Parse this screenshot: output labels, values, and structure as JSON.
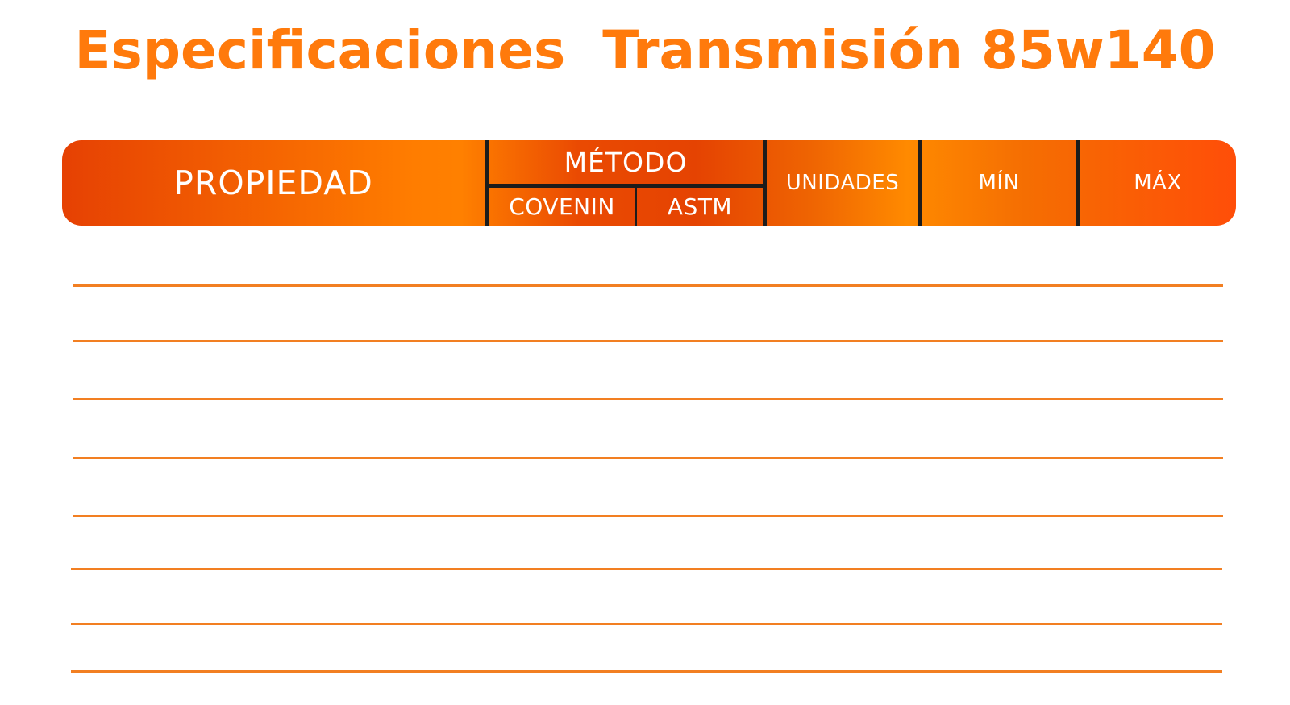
{
  "title": "Especificaciones  Transmisión 85w140",
  "colors": {
    "title": "#ff7a0c",
    "header_gradient_start": "#e64103",
    "header_gradient_mid": "#ff8000",
    "header_gradient_end": "#ff4e08",
    "divider": "#1c1c1c",
    "rule_lines": "#f27f22",
    "header_text": "#ffffff"
  },
  "table": {
    "headers": {
      "propiedad": "PROPIEDAD",
      "metodo": "MÉTODO",
      "covenin": "COVENIN",
      "astm": "ASTM",
      "unidades": "UNIDADES",
      "min": "MÍN",
      "max": "MÁX"
    },
    "rows": [
      {
        "propiedad": "",
        "covenin": "",
        "astm": "",
        "unidades": "",
        "min": "",
        "max": ""
      },
      {
        "propiedad": "",
        "covenin": "",
        "astm": "",
        "unidades": "",
        "min": "",
        "max": ""
      },
      {
        "propiedad": "",
        "covenin": "",
        "astm": "",
        "unidades": "",
        "min": "",
        "max": ""
      },
      {
        "propiedad": "",
        "covenin": "",
        "astm": "",
        "unidades": "",
        "min": "",
        "max": ""
      },
      {
        "propiedad": "",
        "covenin": "",
        "astm": "",
        "unidades": "",
        "min": "",
        "max": ""
      },
      {
        "propiedad": "",
        "covenin": "",
        "astm": "",
        "unidades": "",
        "min": "",
        "max": ""
      },
      {
        "propiedad": "",
        "covenin": "",
        "astm": "",
        "unidades": "",
        "min": "",
        "max": ""
      },
      {
        "propiedad": "",
        "covenin": "",
        "astm": "",
        "unidades": "",
        "min": "",
        "max": ""
      }
    ]
  }
}
